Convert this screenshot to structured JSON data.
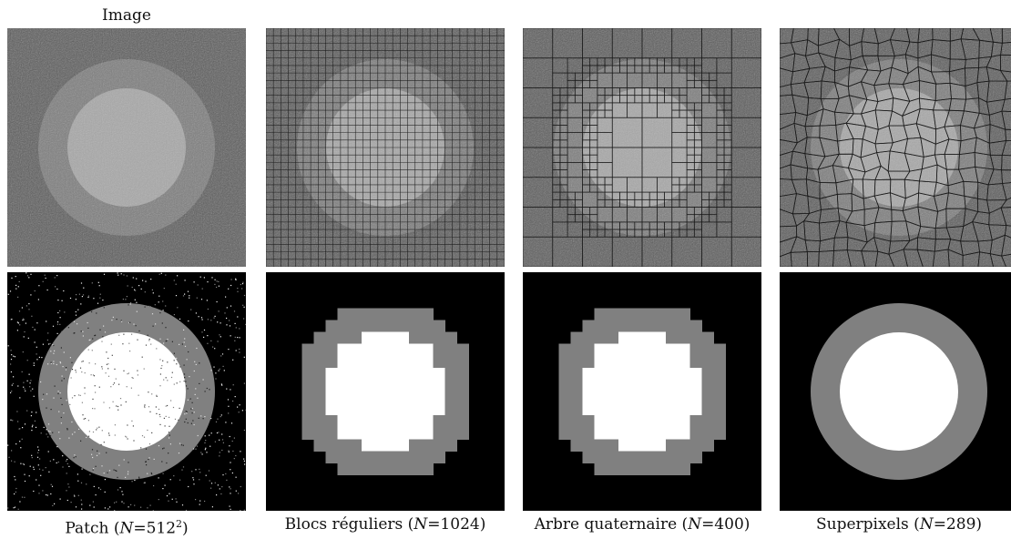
{
  "header": {
    "title": "Image"
  },
  "captions": [
    {
      "prefix": "Patch (",
      "var": "N",
      "eq": "=512",
      "sup": "2",
      "suffix": ")"
    },
    {
      "prefix": "Blocs réguliers (",
      "var": "N",
      "eq": "=1024",
      "sup": "",
      "suffix": ")"
    },
    {
      "prefix": "Arbre quaternaire (",
      "var": "N",
      "eq": "=400",
      "sup": "",
      "suffix": ")"
    },
    {
      "prefix": "Superpixels (",
      "var": "N",
      "eq": "=289",
      "sup": "",
      "suffix": ")"
    }
  ],
  "colors": {
    "background_region": "#5a5a5a",
    "ring_region": "#7d7d7d",
    "inner_region": "#a8a8a8",
    "seg_background": "#000000",
    "seg_ring": "#808080",
    "seg_inner": "#ffffff",
    "grid_lines": "#1a1a1a"
  }
}
